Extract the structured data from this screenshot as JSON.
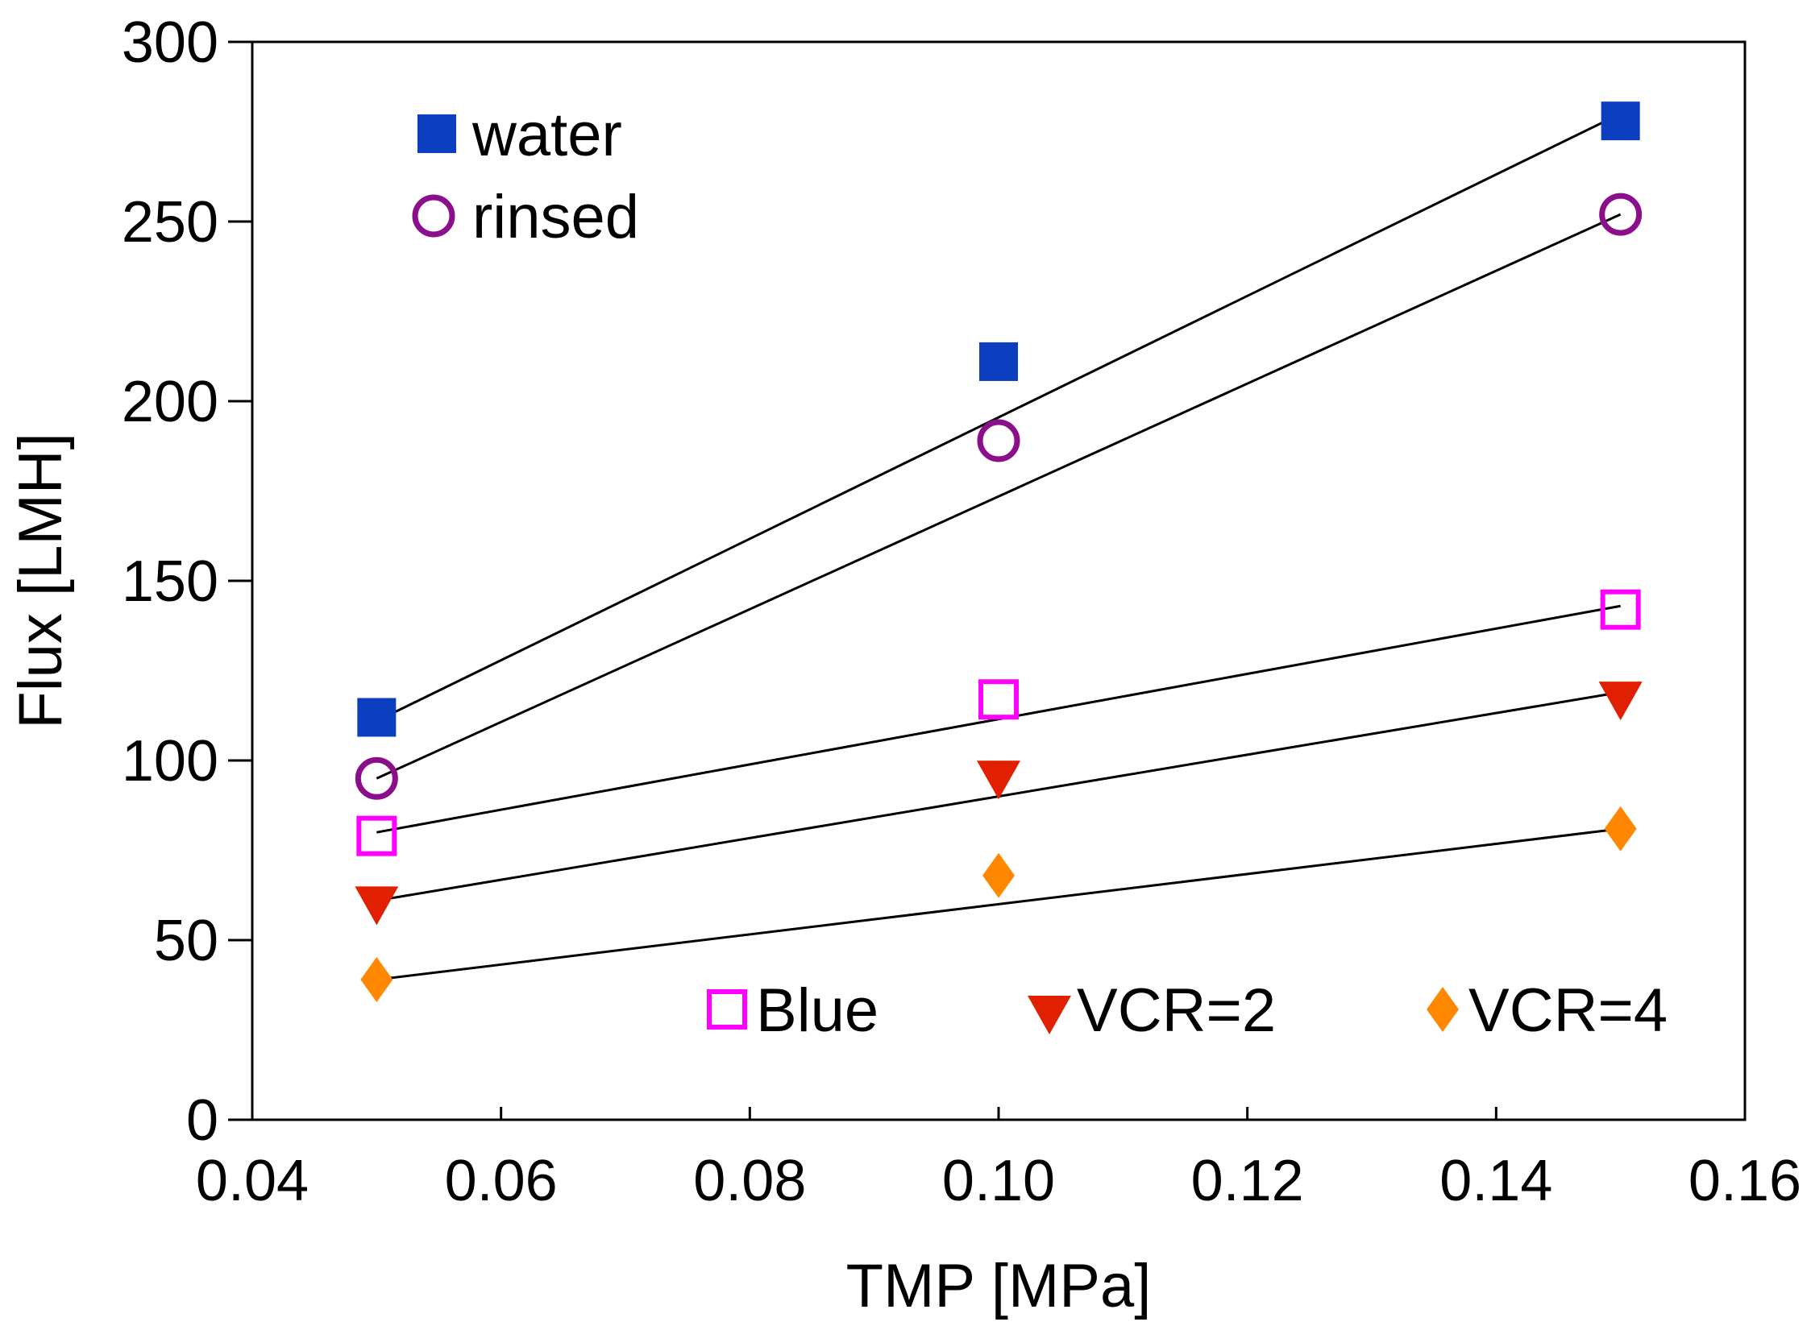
{
  "chart_data": {
    "type": "scatter",
    "title": "",
    "xlabel": "TMP [MPa]",
    "ylabel": "Flux [LMH]",
    "xlim": [
      0.04,
      0.16
    ],
    "ylim": [
      0,
      300
    ],
    "xticks": [
      0.04,
      0.06,
      0.08,
      0.1,
      0.12,
      0.14,
      0.16
    ],
    "xtick_labels": [
      "0.04",
      "0.06",
      "0.08",
      "0.10",
      "0.12",
      "0.14",
      "0.16"
    ],
    "yticks": [
      0,
      50,
      100,
      150,
      200,
      250,
      300
    ],
    "ytick_labels": [
      "0",
      "50",
      "100",
      "150",
      "200",
      "250",
      "300"
    ],
    "grid": false,
    "series": [
      {
        "name": "water",
        "marker": "square-filled",
        "color": "#0b3fbf",
        "x": [
          0.05,
          0.1,
          0.15
        ],
        "values": [
          112,
          211,
          278
        ],
        "fit": {
          "x": [
            0.05,
            0.15
          ],
          "y": [
            111,
            280
          ]
        }
      },
      {
        "name": "rinsed",
        "marker": "circle-open",
        "color": "#8b0f8b",
        "x": [
          0.05,
          0.1,
          0.15
        ],
        "values": [
          95,
          189,
          252
        ],
        "fit": {
          "x": [
            0.05,
            0.15
          ],
          "y": [
            95,
            252
          ]
        }
      },
      {
        "name": "Blue",
        "marker": "square-open",
        "color": "#ff00ff",
        "x": [
          0.05,
          0.1,
          0.15
        ],
        "values": [
          79,
          117,
          142
        ],
        "fit": {
          "x": [
            0.05,
            0.15
          ],
          "y": [
            80,
            143
          ]
        }
      },
      {
        "name": "VCR=2",
        "marker": "triangle-down",
        "color": "#e02000",
        "x": [
          0.05,
          0.1,
          0.15
        ],
        "values": [
          60,
          95,
          117
        ],
        "fit": {
          "x": [
            0.05,
            0.15
          ],
          "y": [
            61,
            119
          ]
        }
      },
      {
        "name": "VCR=4",
        "marker": "diamond",
        "color": "#ff8800",
        "x": [
          0.05,
          0.1,
          0.15
        ],
        "values": [
          39,
          68,
          81
        ],
        "fit": {
          "x": [
            0.05,
            0.15
          ],
          "y": [
            39,
            81
          ]
        }
      }
    ],
    "legend": [
      {
        "series": 0,
        "label": "water",
        "placement": "top-left"
      },
      {
        "series": 1,
        "label": "rinsed",
        "placement": "top-left"
      },
      {
        "series": 2,
        "label": "Blue",
        "placement": "bottom-row"
      },
      {
        "series": 3,
        "label": "VCR=2",
        "placement": "bottom-row"
      },
      {
        "series": 4,
        "label": "VCR=4",
        "placement": "bottom-row"
      }
    ]
  }
}
